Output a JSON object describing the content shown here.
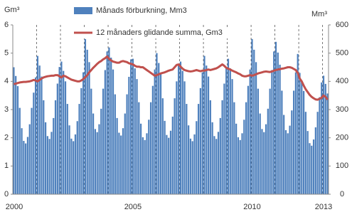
{
  "chart_data": {
    "type": "bar-line",
    "y_unit": "Gm³",
    "y2_unit": "Mm³",
    "categories": [
      "2000",
      null,
      null,
      null,
      null,
      null,
      null,
      null,
      null,
      null,
      null,
      null,
      null,
      null,
      null,
      null,
      null,
      null,
      null,
      null,
      null,
      null,
      null,
      null,
      null,
      null,
      null,
      null,
      null,
      null,
      null,
      null,
      null,
      null,
      null,
      null,
      null,
      null,
      null,
      null,
      null,
      null,
      null,
      null,
      null,
      null,
      null,
      null,
      null,
      null,
      null,
      null,
      null,
      null,
      null,
      null,
      null,
      null,
      null,
      null,
      "2005",
      null,
      null,
      null,
      null,
      null,
      null,
      null,
      null,
      null,
      null,
      null,
      null,
      null,
      null,
      null,
      null,
      null,
      null,
      null,
      null,
      null,
      null,
      null,
      null,
      null,
      null,
      null,
      null,
      null,
      null,
      null,
      null,
      null,
      null,
      null,
      null,
      null,
      null,
      null,
      null,
      null,
      null,
      null,
      null,
      null,
      null,
      null,
      null,
      null,
      null,
      null,
      null,
      null,
      null,
      null,
      null,
      null,
      null,
      null,
      "2010",
      null,
      null,
      null,
      null,
      null,
      null,
      null,
      null,
      null,
      null,
      null,
      null,
      null,
      null,
      null,
      null,
      null,
      null,
      null,
      null,
      null,
      null,
      null,
      null,
      null,
      null,
      null,
      null,
      null,
      null,
      null,
      null,
      null,
      null,
      null,
      "2013",
      null,
      null
    ],
    "series": [
      {
        "name": "Månads förburkning, Mm3",
        "kind": "bar",
        "axis": "y2",
        "color": "#4f81bd",
        "values": [
          450,
          419,
          383,
          306,
          234,
          189,
          180,
          203,
          248,
          306,
          360,
          414,
          490,
          456,
          417,
          333,
          255,
          206,
          196,
          221,
          270,
          333,
          392,
          451,
          470,
          437,
          400,
          320,
          244,
          197,
          188,
          212,
          259,
          320,
          376,
          432,
          550,
          512,
          468,
          374,
          286,
          231,
          220,
          248,
          303,
          374,
          440,
          506,
          520,
          484,
          442,
          354,
          270,
          218,
          208,
          234,
          286,
          354,
          416,
          478,
          480,
          446,
          408,
          326,
          250,
          202,
          192,
          216,
          264,
          326,
          384,
          442,
          500,
          465,
          425,
          340,
          260,
          210,
          200,
          225,
          275,
          340,
          400,
          460,
          470,
          437,
          400,
          320,
          244,
          197,
          188,
          212,
          259,
          320,
          376,
          432,
          490,
          456,
          417,
          333,
          255,
          206,
          196,
          221,
          270,
          333,
          392,
          451,
          480,
          446,
          408,
          326,
          250,
          202,
          192,
          216,
          264,
          326,
          384,
          442,
          550,
          512,
          468,
          374,
          286,
          231,
          220,
          248,
          303,
          374,
          440,
          506,
          540,
          502,
          459,
          367,
          281,
          227,
          216,
          243,
          297,
          367,
          432,
          497,
          430,
          400,
          366,
          292,
          224,
          181,
          172,
          194,
          237,
          292,
          344,
          396,
          420,
          391,
          357
        ]
      },
      {
        "name": "12 månaders glidande summa, Gm3",
        "kind": "line",
        "axis": "y",
        "color": "#c0504d",
        "values": [
          3.9,
          3.92,
          3.94,
          3.96,
          3.97,
          3.98,
          3.98,
          3.99,
          4.0,
          4.02,
          4.05,
          4.03,
          4.0,
          4.05,
          4.1,
          4.14,
          4.16,
          4.18,
          4.19,
          4.2,
          4.2,
          4.22,
          4.22,
          4.18,
          4.14,
          4.2,
          4.18,
          4.14,
          4.1,
          4.06,
          4.04,
          4.02,
          4.0,
          4.0,
          4.03,
          4.08,
          4.15,
          4.22,
          4.32,
          4.4,
          4.48,
          4.55,
          4.62,
          4.68,
          4.72,
          4.78,
          4.82,
          4.88,
          4.8,
          4.74,
          4.7,
          4.68,
          4.66,
          4.66,
          4.7,
          4.72,
          4.7,
          4.68,
          4.64,
          4.62,
          4.6,
          4.55,
          4.52,
          4.52,
          4.5,
          4.5,
          4.45,
          4.4,
          4.35,
          4.3,
          4.25,
          4.2,
          4.22,
          4.25,
          4.28,
          4.3,
          4.32,
          4.35,
          4.38,
          4.4,
          4.42,
          4.5,
          4.58,
          4.6,
          4.52,
          4.45,
          4.4,
          4.38,
          4.36,
          4.35,
          4.36,
          4.38,
          4.4,
          4.38,
          4.36,
          4.38,
          4.38,
          4.4,
          4.42,
          4.4,
          4.42,
          4.44,
          4.46,
          4.5,
          4.55,
          4.6,
          4.55,
          4.48,
          4.45,
          4.42,
          4.38,
          4.35,
          4.32,
          4.28,
          4.25,
          4.2,
          4.18,
          4.18,
          4.2,
          4.22,
          4.2,
          4.22,
          4.25,
          4.28,
          4.3,
          4.32,
          4.34,
          4.35,
          4.34,
          4.33,
          4.35,
          4.38,
          4.4,
          4.42,
          4.43,
          4.45,
          4.46,
          4.48,
          4.5,
          4.5,
          4.48,
          4.44,
          4.4,
          4.3,
          4.1,
          4.0,
          3.85,
          3.72,
          3.62,
          3.52,
          3.45,
          3.4,
          3.36,
          3.35,
          3.38,
          3.42,
          3.5,
          3.45,
          3.35
        ]
      }
    ],
    "ylim": [
      0,
      6
    ],
    "yticks": [
      0,
      1,
      2,
      3,
      4,
      5,
      6
    ],
    "y2lim": [
      0,
      600
    ],
    "y2ticks": [
      0,
      100,
      200,
      300,
      400,
      500,
      600
    ],
    "year_grid": true
  }
}
